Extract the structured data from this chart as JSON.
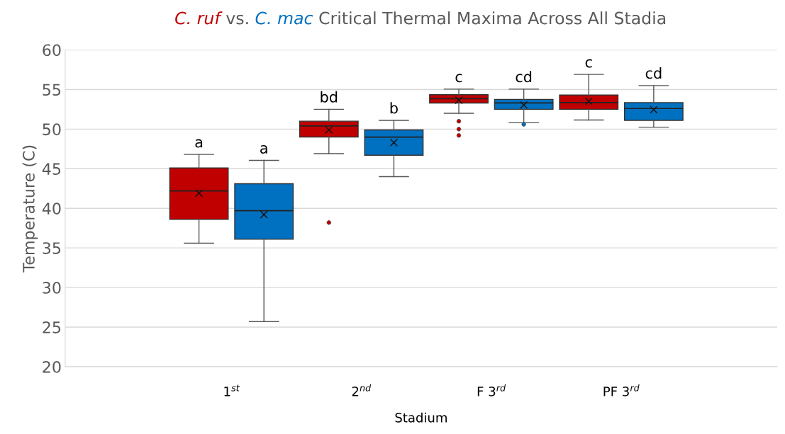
{
  "chart_data": {
    "type": "box",
    "title": "Critical Thermal Maxima Across All Stadia",
    "xlabel": "Stadium",
    "ylabel": "Temperature (C)",
    "categories": [
      "1$^{st}$",
      "2$^{nd}$",
      "F 3$^{rd}$",
      "PF 3$^{rd}$"
    ],
    "series": [
      {
        "name": "C. ruf",
        "color": "#c00000",
        "boxes": [
          {
            "low": 35.6,
            "q1": 38.6,
            "median": 42.2,
            "q3": 45.1,
            "high": 46.8,
            "mean": 41.9
          },
          {
            "low": 46.9,
            "q1": 49.0,
            "median": 50.4,
            "q3": 51.0,
            "high": 52.5,
            "mean": 49.9,
            "outliers": [
              38.2
            ]
          },
          {
            "low": 52.0,
            "q1": 53.3,
            "median": 53.85,
            "q3": 54.35,
            "high": 55.05,
            "mean": 53.65,
            "outliers": [
              51.0,
              50.0,
              49.2
            ]
          },
          {
            "low": 51.15,
            "q1": 52.5,
            "median": 53.35,
            "q3": 54.3,
            "high": 56.9,
            "mean": 53.5
          }
        ]
      },
      {
        "name": "C. mac",
        "color": "#0070c0",
        "boxes": [
          {
            "low": 25.7,
            "q1": 36.1,
            "median": 39.7,
            "q3": 43.1,
            "high": 46.05,
            "mean": 39.2
          },
          {
            "low": 44.0,
            "q1": 46.7,
            "median": 49.0,
            "q3": 49.9,
            "high": 51.1,
            "mean": 48.3
          },
          {
            "low": 50.8,
            "q1": 52.5,
            "median": 53.3,
            "q3": 53.75,
            "high": 55.05,
            "mean": 53.05,
            "outliers": [
              50.6
            ]
          },
          {
            "low": 50.25,
            "q1": 51.1,
            "median": 52.6,
            "q3": 53.35,
            "high": 55.5,
            "mean": 52.45
          }
        ]
      }
    ],
    "annotations": [
      "vs.",
      "a",
      "a",
      "bd",
      "b",
      "c",
      "cd",
      "c",
      "cd"
    ],
    "ylim": [
      20,
      60
    ],
    "yticks": [
      20,
      25,
      30,
      35,
      40,
      45,
      50,
      55,
      60
    ],
    "grid": "y",
    "marker": "cross"
  }
}
